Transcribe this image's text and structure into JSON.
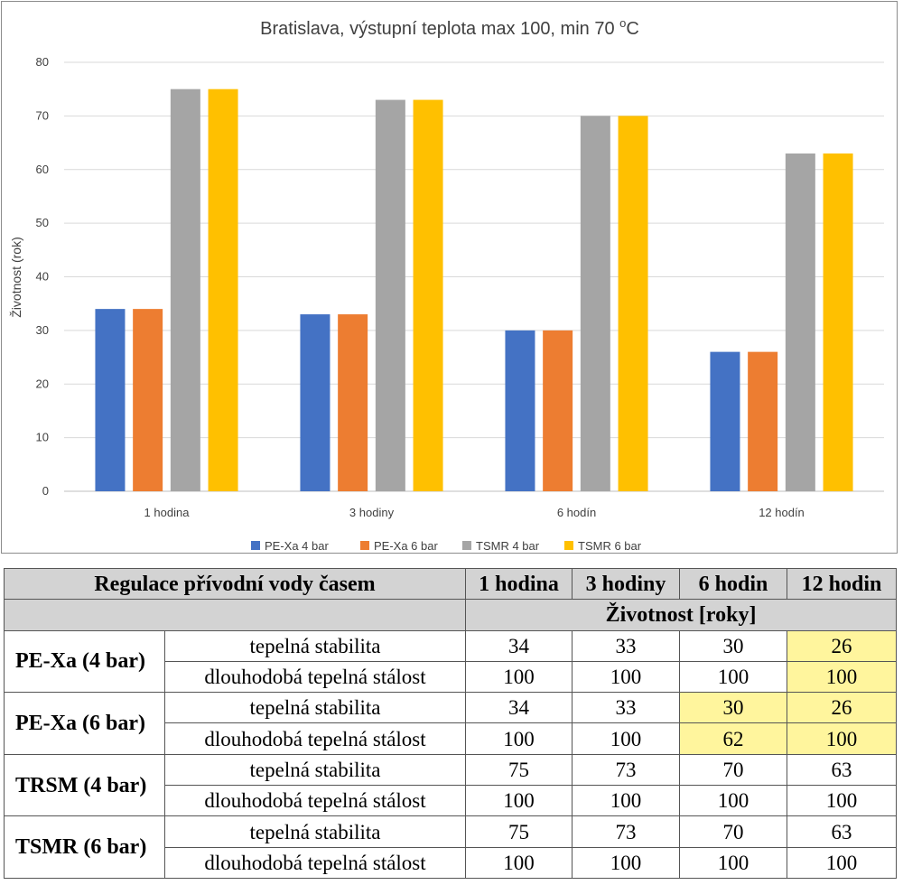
{
  "chart_data": {
    "type": "bar",
    "title_text": "Bratislava, výstupní teplota max 100, min 70 ",
    "title_sup": "o",
    "title_unit": "C",
    "xlabel": "",
    "ylabel": "Životnost (rok)",
    "categories": [
      "1 hodina",
      "3 hodiny",
      "6 hodín",
      "12 hodín"
    ],
    "ylim": [
      0,
      80
    ],
    "yticks": [
      0,
      10,
      20,
      30,
      40,
      50,
      60,
      70,
      80
    ],
    "grid": true,
    "legend_position": "bottom",
    "series": [
      {
        "name": "PE-Xa 4 bar",
        "color": "#4472c4",
        "values": [
          34,
          33,
          30,
          26
        ]
      },
      {
        "name": "PE-Xa 6 bar",
        "color": "#ed7d31",
        "values": [
          34,
          33,
          30,
          26
        ]
      },
      {
        "name": "TSMR 4 bar",
        "color": "#a5a5a5",
        "values": [
          75,
          73,
          70,
          63
        ]
      },
      {
        "name": "TSMR 6 bar",
        "color": "#ffc000",
        "values": [
          75,
          73,
          70,
          63
        ]
      }
    ]
  },
  "table": {
    "header_label": "Regulace přívodní vody časem",
    "columns": [
      "1 hodina",
      "3 hodiny",
      "6 hodin",
      "12 hodin"
    ],
    "subheader": "Životnost  [roky]",
    "highlight_color": "#fff59d",
    "groups": [
      {
        "name": "PE-Xa (4 bar)",
        "rows": [
          {
            "label": "tepelná stabilita",
            "values": [
              "34",
              "33",
              "30",
              "26"
            ],
            "highlight": [
              false,
              false,
              false,
              true
            ]
          },
          {
            "label": "dlouhodobá tepelná stálost",
            "values": [
              "100",
              "100",
              "100",
              "100"
            ],
            "highlight": [
              false,
              false,
              false,
              true
            ]
          }
        ]
      },
      {
        "name": "PE-Xa (6 bar)",
        "rows": [
          {
            "label": "tepelná stabilita",
            "values": [
              "34",
              "33",
              "30",
              "26"
            ],
            "highlight": [
              false,
              false,
              true,
              true
            ]
          },
          {
            "label": "dlouhodobá tepelná stálost",
            "values": [
              "100",
              "100",
              "62",
              "100"
            ],
            "highlight": [
              false,
              false,
              true,
              true
            ]
          }
        ]
      },
      {
        "name": "TRSM (4 bar)",
        "rows": [
          {
            "label": "tepelná stabilita",
            "values": [
              "75",
              "73",
              "70",
              "63"
            ],
            "highlight": [
              false,
              false,
              false,
              false
            ]
          },
          {
            "label": "dlouhodobá tepelná stálost",
            "values": [
              "100",
              "100",
              "100",
              "100"
            ],
            "highlight": [
              false,
              false,
              false,
              false
            ]
          }
        ]
      },
      {
        "name": "TSMR (6 bar)",
        "rows": [
          {
            "label": "tepelná stabilita",
            "values": [
              "75",
              "73",
              "70",
              "63"
            ],
            "highlight": [
              false,
              false,
              false,
              false
            ]
          },
          {
            "label": "dlouhodobá tepelná stálost",
            "values": [
              "100",
              "100",
              "100",
              "100"
            ],
            "highlight": [
              false,
              false,
              false,
              false
            ]
          }
        ]
      }
    ]
  }
}
